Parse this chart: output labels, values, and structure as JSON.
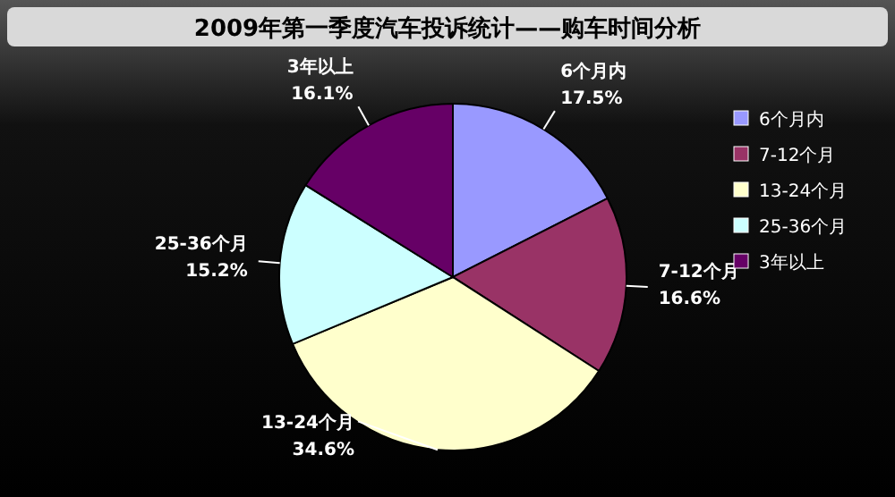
{
  "chart_data": {
    "type": "pie",
    "title": "2009年第一季度汽车投诉统计——购车时间分析",
    "categories": [
      "6个月内",
      "7-12个月",
      "13-24个月",
      "25-36个月",
      "3年以上"
    ],
    "values": [
      17.5,
      16.6,
      34.6,
      15.2,
      16.1
    ],
    "colors": [
      "#9999ff",
      "#993366",
      "#ffffcc",
      "#ccffff",
      "#660066"
    ],
    "value_labels": [
      "17.5%",
      "16.6%",
      "34.6%",
      "15.2%",
      "16.1%"
    ],
    "legend": "right"
  }
}
